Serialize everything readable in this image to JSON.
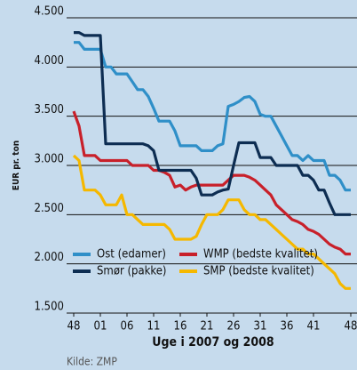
{
  "chart_data": {
    "type": "line",
    "ylabel": "EUR pr. ton",
    "xlabel": "Uge i 2007 og 2008",
    "source": "Kilde: ZMP",
    "categories": [
      "48",
      null,
      null,
      null,
      null,
      "01",
      null,
      null,
      null,
      null,
      "06",
      null,
      null,
      null,
      null,
      "11",
      null,
      null,
      null,
      null,
      "16",
      null,
      null,
      null,
      null,
      "21",
      null,
      null,
      null,
      null,
      "26",
      null,
      null,
      null,
      null,
      "31",
      null,
      null,
      null,
      null,
      "36",
      null,
      null,
      null,
      null,
      "41",
      null,
      null,
      null,
      null,
      null,
      null,
      "48"
    ],
    "ylim": [
      1500,
      4500
    ],
    "yticks": [
      {
        "value": 1500,
        "label": "1.500"
      },
      {
        "value": 2000,
        "label": "2.000"
      },
      {
        "value": 2500,
        "label": "2.500"
      },
      {
        "value": 3000,
        "label": "3.000"
      },
      {
        "value": 3500,
        "label": "3.500"
      },
      {
        "value": 4000,
        "label": "4.000"
      },
      {
        "value": 4500,
        "label": "4.500"
      }
    ],
    "grid": true,
    "legend": "lower left",
    "series": [
      {
        "name": "Ost (edamer)",
        "color": "#2f8fc8",
        "values": [
          4250,
          4250,
          4180,
          4180,
          4180,
          4180,
          4000,
          4000,
          3930,
          3930,
          3930,
          3850,
          3770,
          3770,
          3700,
          3580,
          3450,
          3450,
          3450,
          3350,
          3200,
          3200,
          3200,
          3200,
          3150,
          3150,
          3150,
          3200,
          3220,
          3600,
          3620,
          3650,
          3690,
          3700,
          3650,
          3520,
          3500,
          3500,
          3400,
          3300,
          3200,
          3100,
          3100,
          3050,
          3100,
          3050,
          3050,
          3050,
          2900,
          2900,
          2850,
          2750,
          2750
        ]
      },
      {
        "name": "WMP (bedste kvalitet)",
        "color": "#c8202a",
        "values": [
          3550,
          3400,
          3100,
          3100,
          3100,
          3050,
          3050,
          3050,
          3050,
          3050,
          3050,
          3000,
          3000,
          3000,
          3000,
          2950,
          2950,
          2930,
          2900,
          2780,
          2800,
          2750,
          2780,
          2800,
          2800,
          2800,
          2800,
          2800,
          2800,
          2850,
          2900,
          2900,
          2900,
          2880,
          2850,
          2800,
          2750,
          2700,
          2600,
          2550,
          2500,
          2450,
          2430,
          2400,
          2350,
          2330,
          2300,
          2250,
          2200,
          2170,
          2150,
          2100,
          2100
        ]
      },
      {
        "name": "Smør (pakke)",
        "color": "#0d2d52",
        "values": [
          4350,
          4350,
          4320,
          4320,
          4320,
          4320,
          3220,
          3220,
          3220,
          3220,
          3220,
          3220,
          3220,
          3220,
          3200,
          3150,
          2950,
          2950,
          2950,
          2950,
          2950,
          2950,
          2950,
          2870,
          2700,
          2700,
          2700,
          2730,
          2750,
          2760,
          3000,
          3230,
          3230,
          3230,
          3230,
          3080,
          3080,
          3080,
          3000,
          3000,
          3000,
          3000,
          3000,
          2900,
          2900,
          2850,
          2750,
          2750,
          2620,
          2500,
          2500,
          2500,
          2500
        ]
      },
      {
        "name": "SMP (bedste kvalitet)",
        "color": "#f5b800",
        "values": [
          3100,
          3050,
          2750,
          2750,
          2750,
          2700,
          2600,
          2600,
          2600,
          2700,
          2500,
          2500,
          2450,
          2400,
          2400,
          2400,
          2400,
          2400,
          2350,
          2250,
          2250,
          2250,
          2250,
          2280,
          2400,
          2500,
          2500,
          2500,
          2550,
          2650,
          2650,
          2650,
          2550,
          2500,
          2500,
          2450,
          2450,
          2400,
          2350,
          2300,
          2250,
          2200,
          2150,
          2150,
          2100,
          2100,
          2050,
          2000,
          1950,
          1900,
          1800,
          1750,
          1750
        ]
      }
    ]
  }
}
